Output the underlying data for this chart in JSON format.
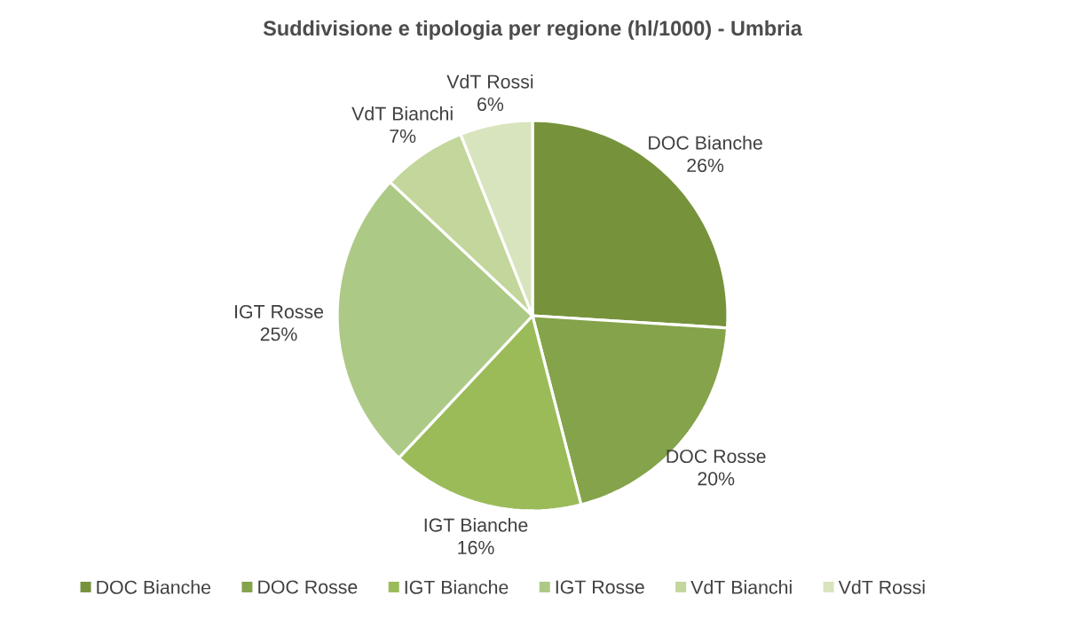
{
  "chart_data": {
    "type": "pie",
    "title": "Suddivisione e tipologia  per regione (hl/1000) - Umbria",
    "categories": [
      "DOC Bianche",
      "DOC Rosse",
      "IGT Bianche",
      "IGT Rosse",
      "VdT Bianchi",
      "VdT Rossi"
    ],
    "values": [
      26,
      20,
      16,
      25,
      7,
      6
    ],
    "value_labels": [
      "26%",
      "20%",
      "16%",
      "25%",
      "7%",
      "6%"
    ],
    "colors": [
      "#76933c",
      "#84a34a",
      "#9bbb59",
      "#adc986",
      "#c3d69b",
      "#d7e4bd"
    ],
    "legend": "bottom"
  }
}
